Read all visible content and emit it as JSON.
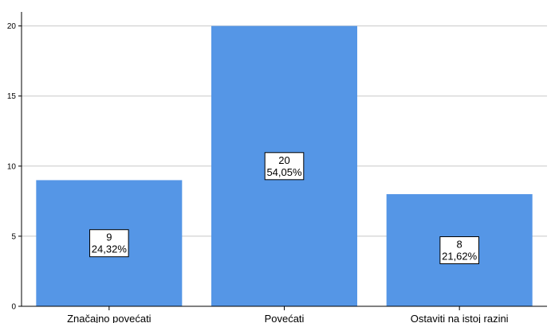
{
  "chart_data": {
    "type": "bar",
    "categories": [
      "Značajno povećati",
      "Povećati",
      "Ostaviti na istoj razini"
    ],
    "values": [
      9,
      20,
      8
    ],
    "percent_labels": [
      "24,32%",
      "54,05%",
      "21,62%"
    ],
    "title": "",
    "xlabel": "",
    "ylabel": "",
    "ylim": [
      0,
      21
    ],
    "yticks": [
      0,
      5,
      10,
      15,
      20
    ],
    "grid": true,
    "legend": "none",
    "bar_color": "#5596e6"
  }
}
